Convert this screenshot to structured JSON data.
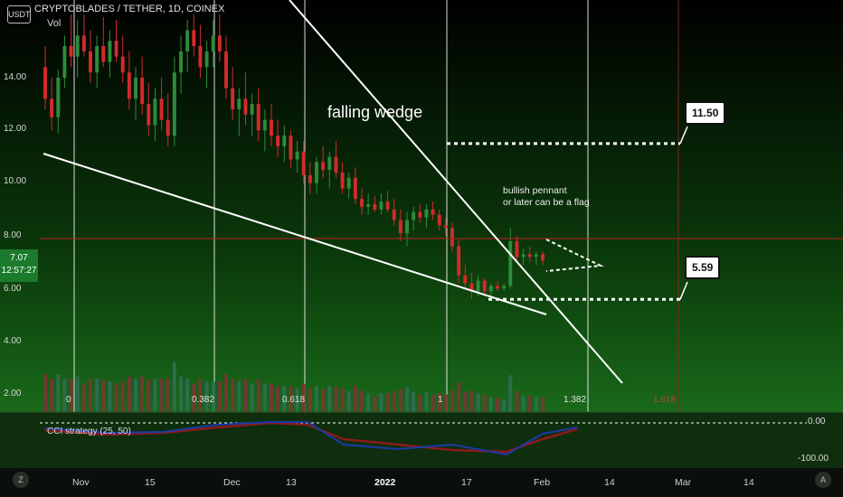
{
  "header": {
    "symbol_line": "CRYPTOBLADES / TETHER, 1D, COINEX",
    "volume_label": "Vol",
    "unit": "USDT"
  },
  "price_badge": {
    "price": "7.07",
    "countdown": "12:57:27"
  },
  "y_axis_ticks": [
    "14.00",
    "12.00",
    "10.00",
    "8.00",
    "6.00",
    "4.00",
    "2.00"
  ],
  "x_axis_ticks": [
    {
      "label": "Nov",
      "bold": false
    },
    {
      "label": "15",
      "bold": false
    },
    {
      "label": "Dec",
      "bold": false
    },
    {
      "label": "13",
      "bold": false
    },
    {
      "label": "2022",
      "bold": true
    },
    {
      "label": "17",
      "bold": false
    },
    {
      "label": "Feb",
      "bold": false
    },
    {
      "label": "14",
      "bold": false
    },
    {
      "label": "Mar",
      "bold": false
    },
    {
      "label": "14",
      "bold": false
    }
  ],
  "fib_labels": [
    "0",
    "0.382",
    "0.618",
    "1",
    "1.382",
    "1.618"
  ],
  "annotations": {
    "pattern": "falling wedge",
    "pennant_note": "bullish pennant\nor later can be a flag",
    "target_high": "11.50",
    "target_low": "5.59"
  },
  "cci": {
    "title": "CCI strategy (25, 50)",
    "tick_top": "0.00",
    "tick_bottom": "-100.00"
  },
  "corner_buttons": {
    "left": "Z",
    "right": "A"
  },
  "colors": {
    "up": "#2e8b3a",
    "down": "#d42a2a",
    "bg_top": "#000000",
    "bg_bottom": "#1f7a1f",
    "hline": "#b02020",
    "cci_red": "#8b1a1a",
    "cci_blue": "#1a3aa8"
  },
  "chart_data": {
    "type": "candlestick",
    "title": "CRYPTOBLADES / TETHER, 1D, COINEX",
    "ylabel": "USDT",
    "ylim": [
      1.5,
      16.5
    ],
    "candles": [
      [
        14.4,
        15.2,
        12.8,
        13.2
      ],
      [
        13.2,
        14.0,
        12.0,
        12.5
      ],
      [
        12.5,
        14.3,
        11.9,
        14.0
      ],
      [
        14.0,
        15.6,
        13.6,
        15.2
      ],
      [
        15.2,
        16.4,
        14.4,
        14.8
      ],
      [
        14.8,
        16.2,
        14.0,
        15.6
      ],
      [
        15.6,
        16.4,
        14.8,
        15.0
      ],
      [
        15.0,
        15.8,
        13.8,
        14.2
      ],
      [
        14.2,
        15.6,
        13.6,
        15.2
      ],
      [
        15.2,
        16.3,
        14.4,
        14.6
      ],
      [
        14.6,
        15.8,
        14.0,
        15.4
      ],
      [
        15.4,
        16.2,
        14.6,
        14.8
      ],
      [
        14.8,
        15.6,
        13.8,
        14.2
      ],
      [
        14.2,
        15.0,
        12.8,
        13.2
      ],
      [
        13.2,
        14.4,
        12.4,
        14.0
      ],
      [
        14.0,
        14.8,
        12.6,
        13.0
      ],
      [
        13.0,
        13.8,
        11.8,
        12.2
      ],
      [
        12.2,
        13.6,
        11.6,
        13.2
      ],
      [
        13.2,
        14.0,
        12.0,
        12.4
      ],
      [
        12.4,
        13.4,
        11.4,
        11.8
      ],
      [
        11.8,
        14.8,
        11.4,
        14.2
      ],
      [
        14.2,
        15.6,
        13.4,
        15.0
      ],
      [
        15.0,
        16.2,
        14.2,
        15.8
      ],
      [
        15.8,
        16.4,
        14.8,
        15.2
      ],
      [
        15.2,
        16.0,
        14.0,
        14.4
      ],
      [
        14.4,
        15.4,
        13.6,
        15.0
      ],
      [
        15.0,
        16.2,
        14.4,
        15.6
      ],
      [
        15.6,
        16.4,
        14.6,
        15.0
      ],
      [
        15.0,
        15.6,
        13.2,
        13.6
      ],
      [
        13.6,
        14.4,
        12.4,
        12.8
      ],
      [
        12.8,
        13.6,
        11.8,
        13.2
      ],
      [
        13.2,
        14.2,
        12.2,
        12.6
      ],
      [
        12.6,
        13.4,
        11.8,
        13.0
      ],
      [
        13.0,
        13.6,
        11.6,
        12.0
      ],
      [
        12.0,
        12.8,
        11.2,
        12.4
      ],
      [
        12.4,
        13.0,
        11.4,
        11.8
      ],
      [
        11.8,
        12.4,
        11.0,
        11.4
      ],
      [
        11.4,
        12.2,
        10.8,
        11.8
      ],
      [
        11.8,
        12.0,
        10.6,
        10.9
      ],
      [
        10.9,
        11.6,
        10.4,
        11.2
      ],
      [
        11.2,
        11.6,
        10.0,
        10.3
      ],
      [
        10.3,
        10.8,
        9.6,
        10.0
      ],
      [
        10.0,
        11.0,
        9.6,
        10.8
      ],
      [
        10.8,
        11.4,
        10.2,
        10.5
      ],
      [
        10.5,
        11.2,
        9.8,
        11.0
      ],
      [
        11.0,
        11.6,
        10.2,
        10.4
      ],
      [
        10.4,
        10.8,
        9.6,
        9.8
      ],
      [
        9.8,
        10.4,
        9.4,
        10.2
      ],
      [
        10.2,
        10.6,
        9.2,
        9.4
      ],
      [
        9.4,
        9.8,
        8.8,
        9.1
      ],
      [
        9.1,
        9.6,
        8.8,
        9.2
      ],
      [
        9.2,
        9.5,
        8.9,
        9.0
      ],
      [
        9.0,
        9.6,
        8.8,
        9.3
      ],
      [
        9.3,
        9.7,
        8.9,
        9.0
      ],
      [
        9.0,
        9.4,
        8.4,
        8.6
      ],
      [
        8.6,
        9.0,
        7.8,
        8.1
      ],
      [
        8.1,
        8.9,
        7.6,
        8.6
      ],
      [
        8.6,
        9.1,
        8.2,
        8.9
      ],
      [
        8.9,
        9.2,
        8.5,
        8.7
      ],
      [
        8.7,
        9.2,
        8.3,
        9.0
      ],
      [
        9.0,
        9.3,
        8.6,
        8.8
      ],
      [
        8.8,
        9.0,
        8.2,
        8.4
      ],
      [
        8.4,
        8.7,
        8.0,
        8.3
      ],
      [
        8.3,
        8.5,
        7.4,
        7.6
      ],
      [
        7.6,
        7.9,
        6.2,
        6.5
      ],
      [
        6.5,
        6.9,
        6.0,
        6.2
      ],
      [
        6.2,
        6.6,
        5.6,
        5.9
      ],
      [
        5.9,
        6.5,
        5.7,
        6.3
      ],
      [
        6.3,
        6.4,
        5.7,
        5.9
      ],
      [
        5.9,
        6.2,
        5.7,
        6.1
      ],
      [
        6.1,
        6.3,
        5.9,
        6.0
      ],
      [
        6.0,
        6.2,
        5.9,
        6.1
      ],
      [
        6.1,
        8.3,
        6.0,
        7.8
      ],
      [
        7.8,
        8.0,
        7.0,
        7.2
      ],
      [
        7.2,
        7.5,
        6.9,
        7.3
      ],
      [
        7.3,
        7.6,
        7.0,
        7.2
      ],
      [
        7.2,
        7.4,
        6.9,
        7.3
      ],
      [
        7.3,
        7.4,
        6.9,
        7.07
      ]
    ],
    "volume_color_note": "volume bars colored by candle direction",
    "horizontal_line": 7.9,
    "target_levels": [
      11.5,
      5.59
    ]
  }
}
